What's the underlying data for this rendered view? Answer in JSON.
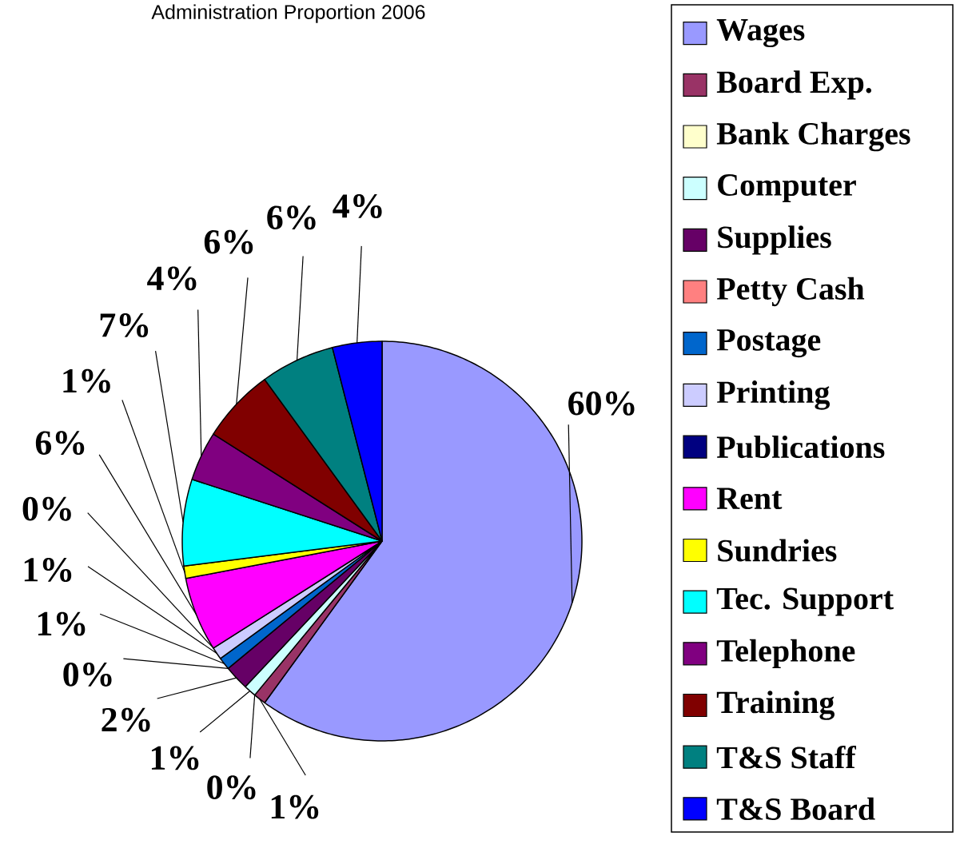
{
  "chart_data": {
    "type": "pie",
    "title": "Administration Proportion 2006",
    "categories": [
      "Wages",
      "Board Exp.",
      "Bank Charges",
      "Computer",
      "Supplies",
      "Petty Cash",
      "Postage",
      "Printing",
      "Publications",
      "Rent",
      "Sundries",
      "Tec. Support",
      "Telephone",
      "Training",
      "T&S Staff",
      "T&S Board"
    ],
    "values": [
      60,
      1,
      0,
      1,
      2,
      0,
      1,
      1,
      0,
      6,
      1,
      7,
      4,
      6,
      6,
      4
    ],
    "value_labels": [
      "60%",
      "1%",
      "0%",
      "1%",
      "2%",
      "0%",
      "1%",
      "1%",
      "0%",
      "6%",
      "1%",
      "7%",
      "4%",
      "6%",
      "6%",
      "4%"
    ],
    "colors": [
      "#9999ff",
      "#993366",
      "#ffffcc",
      "#ccffff",
      "#660066",
      "#ff8080",
      "#0066cc",
      "#ccccff",
      "#000080",
      "#ff00ff",
      "#ffff00",
      "#00ffff",
      "#800080",
      "#800000",
      "#008080",
      "#0000ff"
    ],
    "legend": "right"
  }
}
